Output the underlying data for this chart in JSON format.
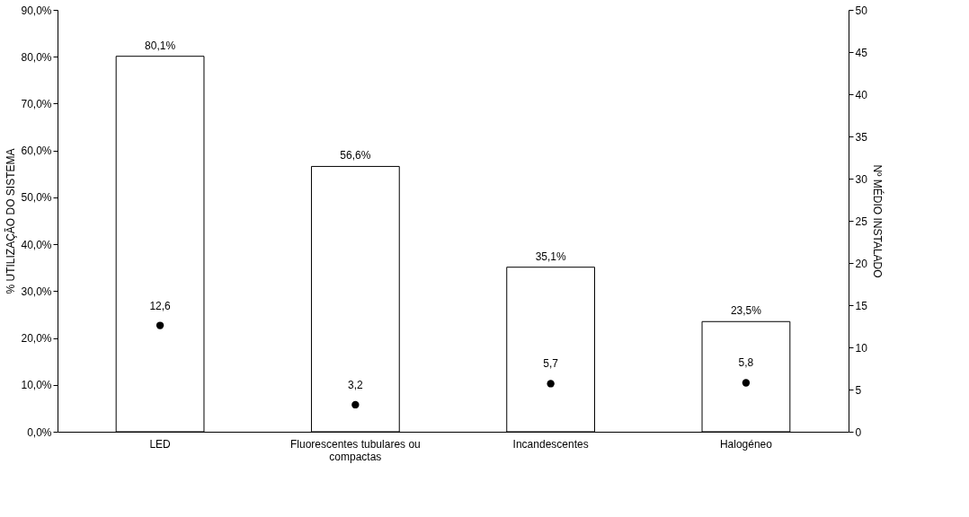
{
  "chart_data": {
    "type": "bar",
    "ylabel": "% UTILIZAÇÃO DO SISTEMA",
    "y2label": "Nº MÉDIO INSTALADO",
    "categories": [
      "LED",
      "Fluorescentes tubulares ou compactas",
      "Incandescentes",
      "Halogéneo"
    ],
    "series": [
      {
        "color": "#ffffff",
        "values": [
          80.1,
          56.6,
          35.1,
          23.5
        ],
        "value_labels": [
          "80,1%",
          "56,6%",
          "35,1%",
          "23,5%"
        ]
      },
      {
        "type": "scatter",
        "axis": "y2",
        "color": "#000000",
        "marker": "circle",
        "values": [
          12.6,
          3.2,
          5.7,
          5.8
        ],
        "value_labels": [
          "12,6",
          "3,2",
          "5,7",
          "5,8"
        ]
      }
    ],
    "ylim": [
      0,
      90
    ],
    "yticks": [
      {
        "value": 0,
        "label": "0,0%"
      },
      {
        "value": 10,
        "label": "10,0%"
      },
      {
        "value": 20,
        "label": "20,0%"
      },
      {
        "value": 30,
        "label": "30,0%"
      },
      {
        "value": 40,
        "label": "40,0%"
      },
      {
        "value": 50,
        "label": "50,0%"
      },
      {
        "value": 60,
        "label": "60,0%"
      },
      {
        "value": 70,
        "label": "70,0%"
      },
      {
        "value": 80,
        "label": "80,0%"
      },
      {
        "value": 90,
        "label": "90,0%"
      }
    ],
    "y2lim": [
      0,
      50
    ],
    "y2ticks": [
      0,
      5,
      10,
      15,
      20,
      25,
      30,
      35,
      40,
      45,
      50
    ]
  }
}
